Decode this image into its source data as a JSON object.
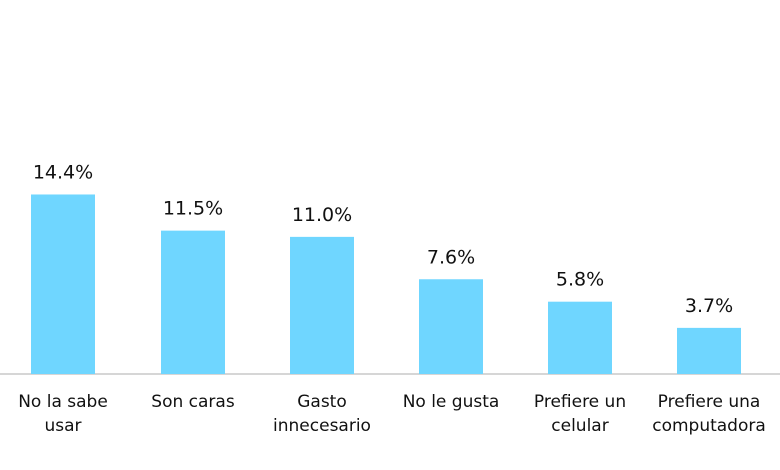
{
  "chart_data": {
    "type": "bar",
    "title": "",
    "xlabel": "",
    "ylabel": "",
    "categories": [
      [
        "No la sabe",
        "usar"
      ],
      [
        "Son caras"
      ],
      [
        "Gasto",
        "innecesario"
      ],
      [
        "No le gusta"
      ],
      [
        "Prefiere un",
        "celular"
      ],
      [
        "Prefiere una",
        "computadora"
      ]
    ],
    "values": [
      14.4,
      11.5,
      11.0,
      7.6,
      5.8,
      3.7
    ],
    "value_labels": [
      "14.4%",
      "11.5%",
      "11.0%",
      "7.6%",
      "5.8%",
      "3.7%"
    ],
    "ylim": [
      0,
      30
    ],
    "grid": false,
    "legend": "none",
    "colors": {
      "bar": "#6fd6ff",
      "axis": "#c8c8c8",
      "text": "#111111"
    }
  }
}
